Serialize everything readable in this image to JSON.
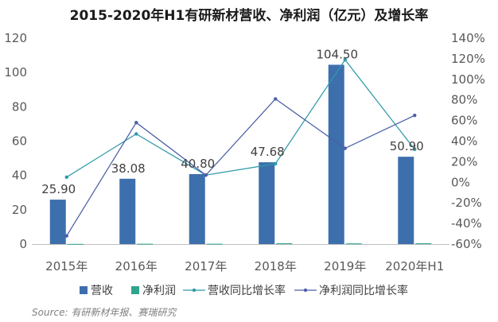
{
  "chart_data": {
    "type": "bar+line",
    "title": "2015-2020年H1有研新材营收、净利润（亿元）及增长率",
    "categories": [
      "2015年",
      "2016年",
      "2017年",
      "2018年",
      "2019年",
      "2020年H1"
    ],
    "series": [
      {
        "name": "营收",
        "kind": "bar",
        "axis": "left",
        "values": [
          25.9,
          38.08,
          40.8,
          47.68,
          104.5,
          50.9
        ],
        "labels": [
          "25.90",
          "38.08",
          "40.80",
          "47.68",
          "104.50",
          "50.90"
        ]
      },
      {
        "name": "净利润",
        "kind": "bar",
        "axis": "left",
        "values": [
          0.1,
          0.2,
          0.2,
          0.5,
          0.4,
          0.5
        ]
      },
      {
        "name": "营收同比增长率",
        "kind": "line",
        "axis": "right",
        "values": [
          5,
          47,
          7,
          18,
          119,
          32
        ]
      },
      {
        "name": "净利润同比增长率",
        "kind": "line",
        "axis": "right",
        "values": [
          -52,
          58,
          7,
          81,
          33,
          65
        ]
      }
    ],
    "y_left": {
      "min": 0,
      "max": 120,
      "ticks": [
        "0",
        "20",
        "40",
        "60",
        "80",
        "100",
        "120"
      ]
    },
    "y_right": {
      "min": -60,
      "max": 140,
      "ticks": [
        "-60%",
        "-40%",
        "-20%",
        "0%",
        "20%",
        "40%",
        "60%",
        "80%",
        "100%",
        "120%",
        "140%"
      ]
    },
    "grid": false,
    "legend_position": "bottom",
    "colors": {
      "revenue_bar": "#3e6fad",
      "profit_bar": "#2fa58c",
      "revenue_line": "#2f9aa9",
      "profit_line": "#4c5fa6"
    },
    "source": "Source: 有研新材年报、赛瑞研究"
  }
}
